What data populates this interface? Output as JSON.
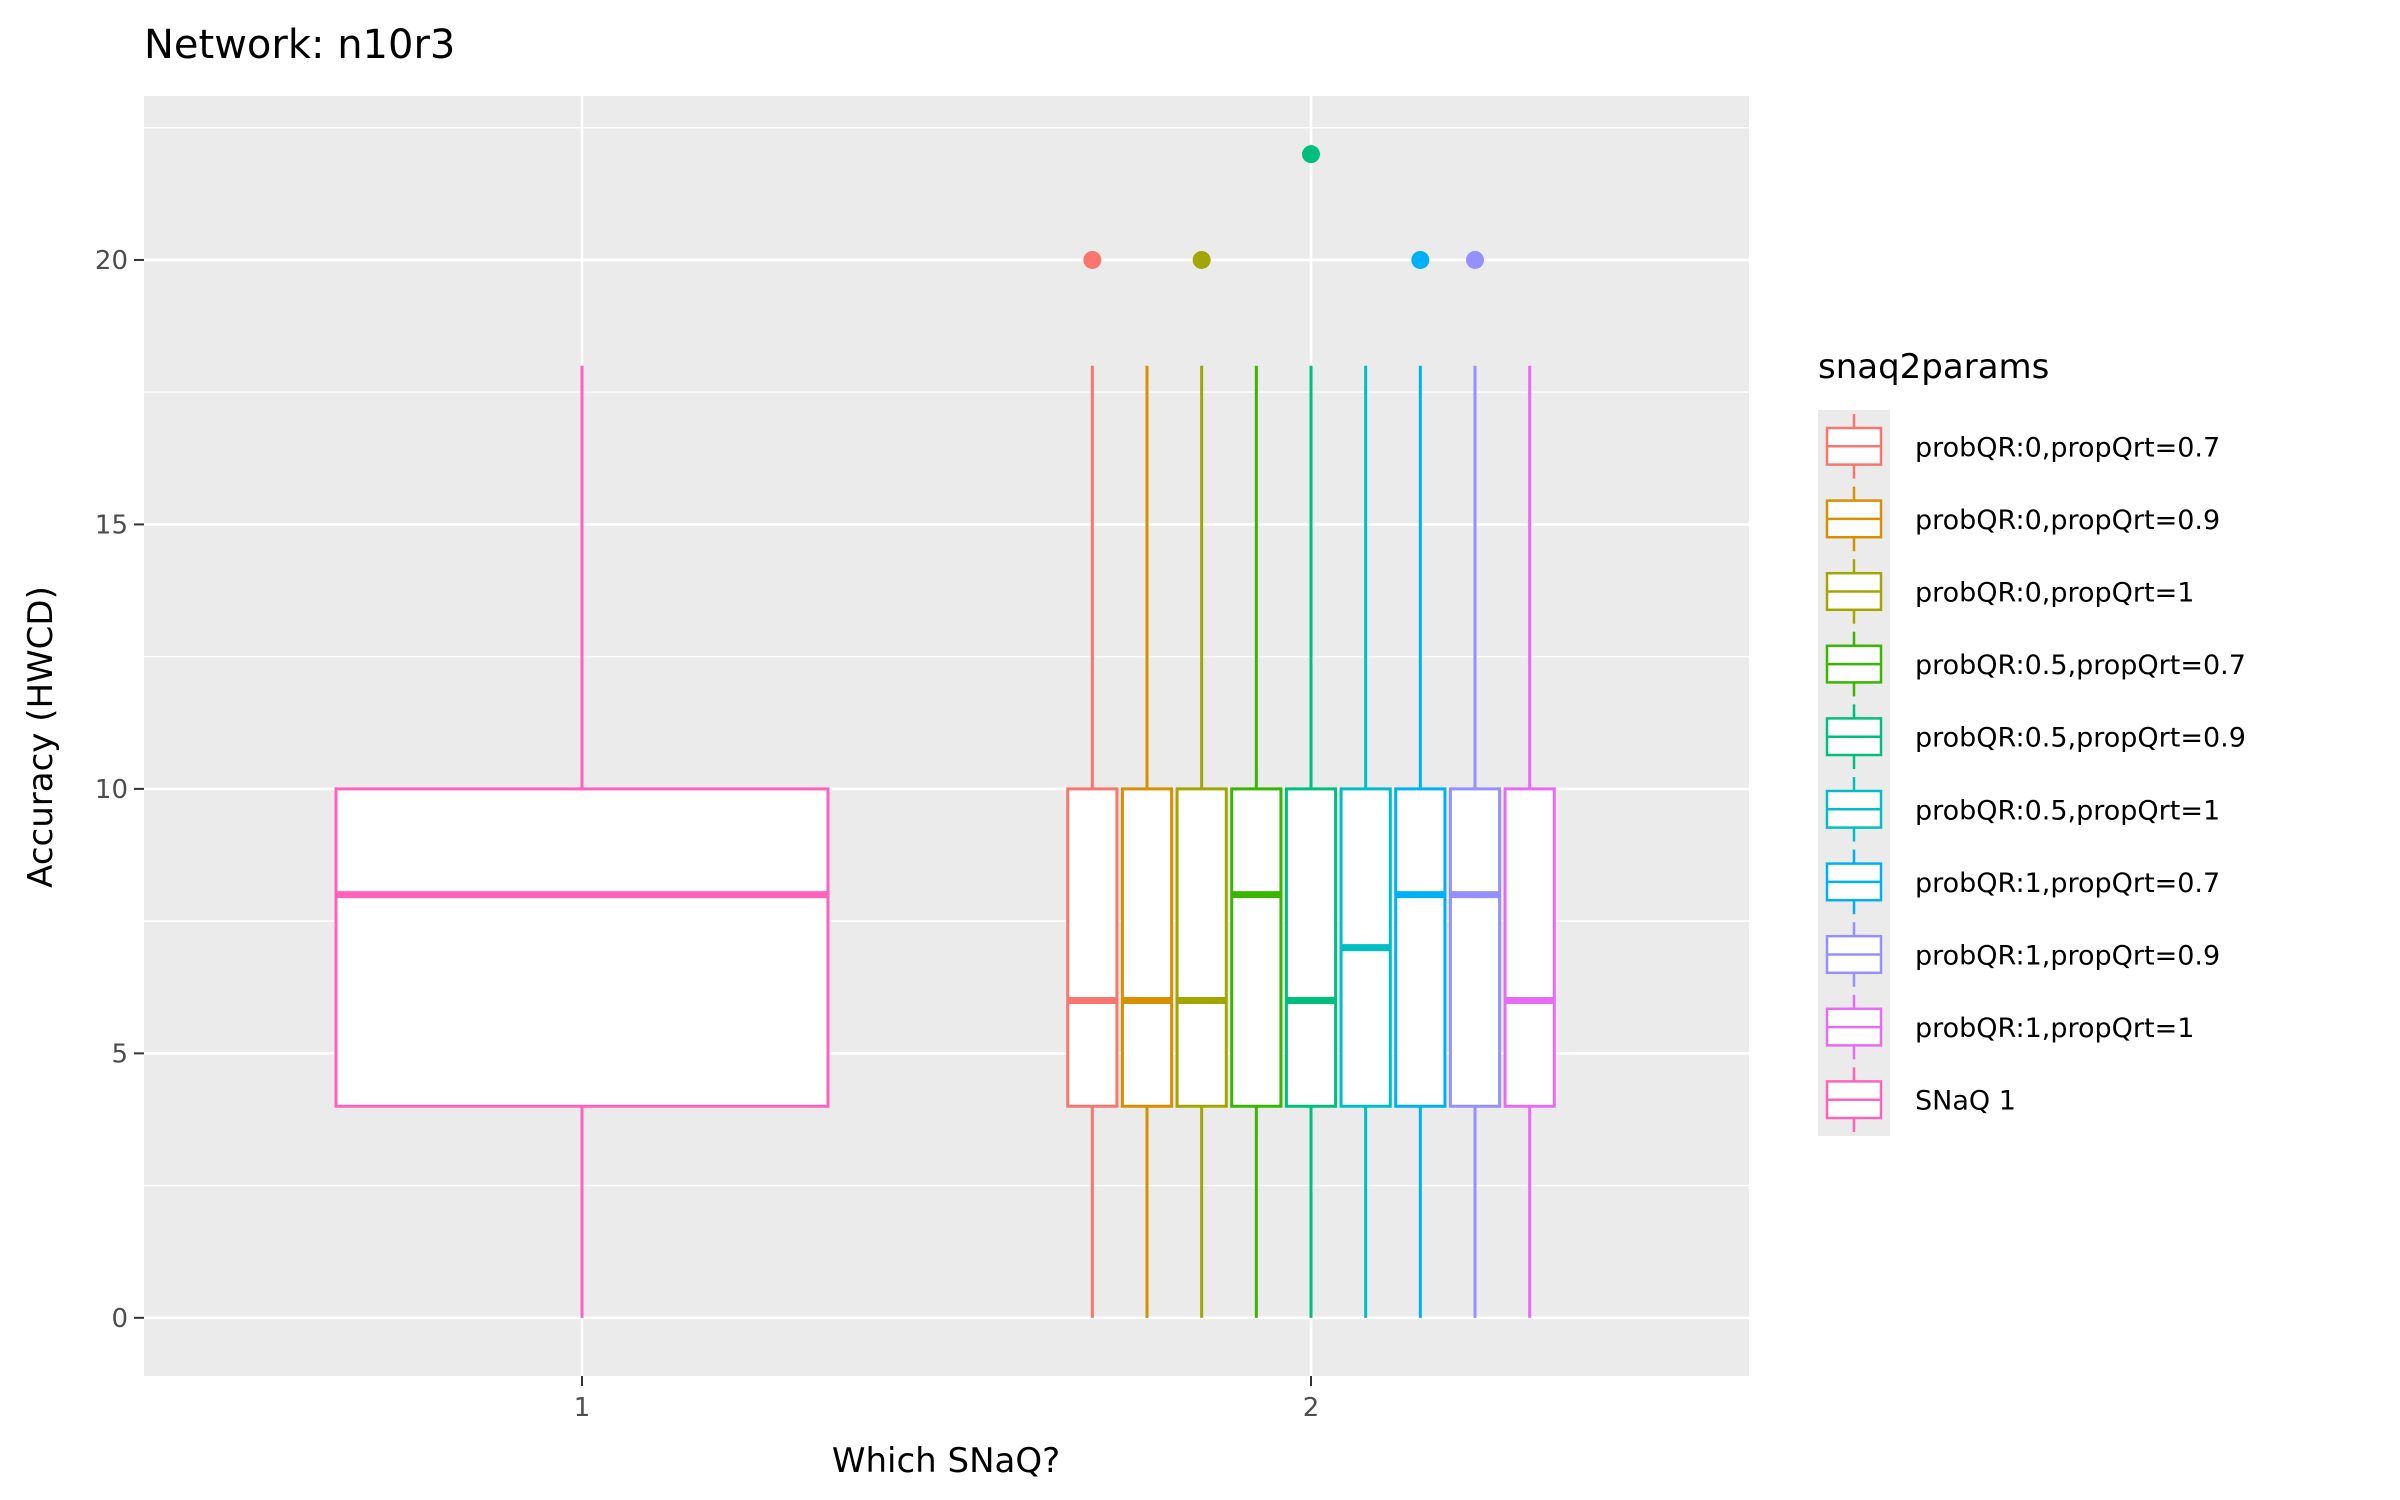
{
  "chart_data": {
    "type": "box",
    "title": "Network: n10r3",
    "xlabel": "Which SNaQ?",
    "ylabel": "Accuracy (HWCD)",
    "categories": [
      "1",
      "2"
    ],
    "y_ticks": [
      0,
      5,
      10,
      15,
      20
    ],
    "ylim": [
      -1.1,
      23.1
    ],
    "grid": true,
    "legend": {
      "title": "snaq2params",
      "position": "right"
    },
    "series": [
      {
        "name": "probQR:0,propQrt=0.7",
        "color": "#F8766D",
        "category": "2",
        "min": 0,
        "q1": 4,
        "median": 6,
        "q3": 10,
        "max": 18,
        "outliers": [
          20
        ]
      },
      {
        "name": "probQR:0,propQrt=0.9",
        "color": "#D89000",
        "category": "2",
        "min": 0,
        "q1": 4,
        "median": 6,
        "q3": 10,
        "max": 18,
        "outliers": []
      },
      {
        "name": "probQR:0,propQrt=1",
        "color": "#A3A500",
        "category": "2",
        "min": 0,
        "q1": 4,
        "median": 6,
        "q3": 10,
        "max": 18,
        "outliers": [
          20
        ]
      },
      {
        "name": "probQR:0.5,propQrt=0.7",
        "color": "#39B600",
        "category": "2",
        "min": 0,
        "q1": 4,
        "median": 8,
        "q3": 10,
        "max": 18,
        "outliers": []
      },
      {
        "name": "probQR:0.5,propQrt=0.9",
        "color": "#00BF7D",
        "category": "2",
        "min": 0,
        "q1": 4,
        "median": 6,
        "q3": 10,
        "max": 18,
        "outliers": [
          22
        ]
      },
      {
        "name": "probQR:0.5,propQrt=1",
        "color": "#00BFC4",
        "category": "2",
        "min": 0,
        "q1": 4,
        "median": 7,
        "q3": 10,
        "max": 18,
        "outliers": []
      },
      {
        "name": "probQR:1,propQrt=0.7",
        "color": "#00B0F6",
        "category": "2",
        "min": 0,
        "q1": 4,
        "median": 8,
        "q3": 10,
        "max": 18,
        "outliers": [
          20
        ]
      },
      {
        "name": "probQR:1,propQrt=0.9",
        "color": "#9590FF",
        "category": "2",
        "min": 0,
        "q1": 4,
        "median": 8,
        "q3": 10,
        "max": 18,
        "outliers": [
          20
        ]
      },
      {
        "name": "probQR:1,propQrt=1",
        "color": "#E76BF3",
        "category": "2",
        "min": 0,
        "q1": 4,
        "median": 6,
        "q3": 10,
        "max": 18,
        "outliers": []
      },
      {
        "name": "SNaQ 1",
        "color": "#FF62BC",
        "category": "1",
        "min": 0,
        "q1": 4,
        "median": 8,
        "q3": 10,
        "max": 18,
        "outliers": []
      }
    ],
    "colors": {
      "panel_background": "#EBEBEB",
      "grid_line": "#FFFFFF",
      "box_fill": "#FFFFFF"
    }
  }
}
